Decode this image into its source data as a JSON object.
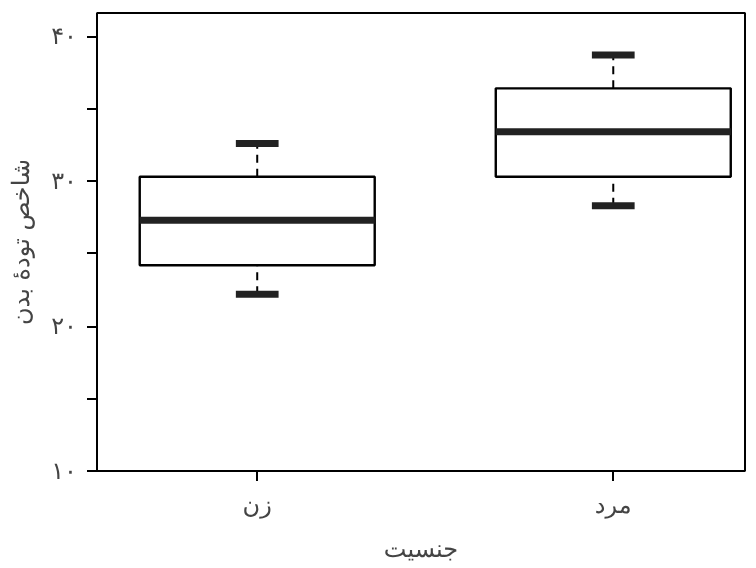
{
  "chart_data": {
    "type": "box",
    "xlabel": "جنسیت",
    "ylabel": "شاخص تودهٔ بدن",
    "categories": [
      "زن",
      "مرد"
    ],
    "boxes": [
      {
        "low": 22.2,
        "q1": 24.2,
        "median": 27.3,
        "q3": 30.3,
        "high": 32.6
      },
      {
        "low": 28.3,
        "q1": 30.3,
        "median": 33.4,
        "q3": 36.4,
        "high": 38.7
      }
    ],
    "ylim": [
      10,
      41.6
    ],
    "yticks": [
      {
        "value": 10,
        "label": "۱۰"
      },
      {
        "value": 15,
        "label": null
      },
      {
        "value": 20,
        "label": "۲۰"
      },
      {
        "value": 25,
        "label": null
      },
      {
        "value": 30,
        "label": "۳۰"
      },
      {
        "value": 35,
        "label": null
      },
      {
        "value": 40,
        "label": "۴۰"
      }
    ],
    "grid": false
  }
}
